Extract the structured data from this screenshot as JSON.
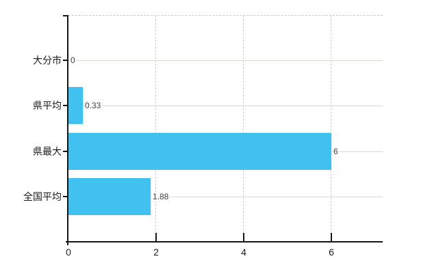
{
  "chart": {
    "background_color": "#ffffff",
    "bar_color": "#41c1ef",
    "axis_color": "#151515",
    "horizontal_grid_color": "#d7dbd1",
    "vertical_grid_color": "#cdcdd3",
    "top_border_color": "#c9c9c9",
    "value_label_color": "#3e3e3e",
    "category_label_color": "#1a1a1a",
    "x_tick_label_color": "#1a1a1a"
  },
  "chart_data": {
    "type": "bar",
    "orientation": "horizontal",
    "title": "",
    "xlabel": "",
    "ylabel": "",
    "legend": false,
    "grid": true,
    "categories": [
      "大分市",
      "県平均",
      "県最大",
      "全国平均"
    ],
    "values": [
      0,
      0.33,
      6,
      1.88
    ],
    "value_labels": [
      "0",
      "0.33",
      "6",
      "1.88"
    ],
    "x_tick_labels": [
      "0",
      "2",
      "4",
      "6"
    ],
    "x_tick_values": [
      0,
      2,
      4,
      6
    ],
    "xlim": [
      0,
      7.17
    ]
  }
}
